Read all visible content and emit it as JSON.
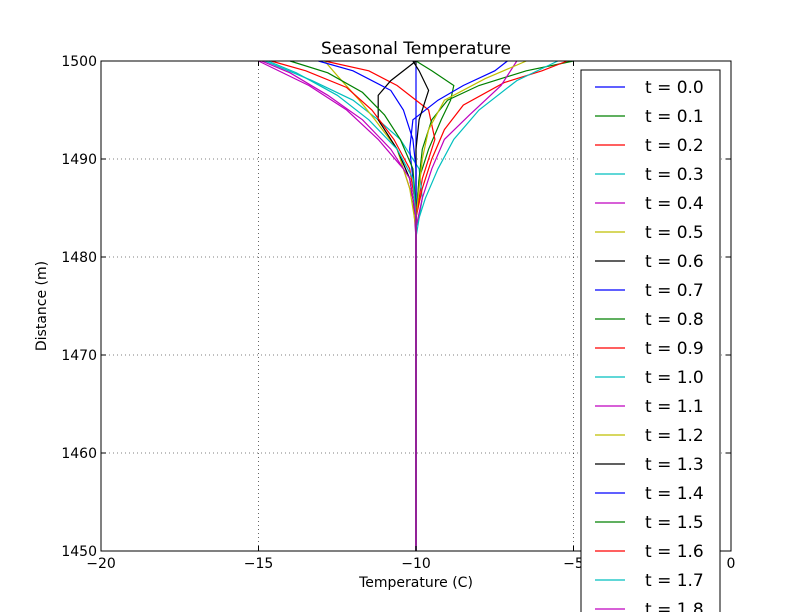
{
  "chart_data": {
    "type": "line",
    "title": "Seasonal Temperature",
    "xlabel": "Temperature (C)",
    "ylabel": "Distance (m)",
    "xlim": [
      -20,
      0
    ],
    "ylim": [
      1450,
      1500
    ],
    "xticks": [
      -20,
      -15,
      -10,
      -5,
      0
    ],
    "xtick_labels": [
      "−20",
      "−15",
      "−10",
      "−5",
      "0"
    ],
    "yticks": [
      1450,
      1460,
      1470,
      1480,
      1490,
      1500
    ],
    "ytick_labels": [
      "1450",
      "1460",
      "1470",
      "1480",
      "1490",
      "1500"
    ],
    "grid": true,
    "legend_position": "right",
    "series": [
      {
        "name": "t = 0.0",
        "color": "#0000ff",
        "points": [
          [
            -10,
            1450
          ],
          [
            -10,
            1500
          ]
        ]
      },
      {
        "name": "t = 0.1",
        "color": "#008000",
        "points": [
          [
            -10,
            1450
          ],
          [
            -10,
            1484
          ],
          [
            -9.9,
            1488
          ],
          [
            -9.6,
            1491
          ],
          [
            -9.2,
            1494
          ],
          [
            -8.9,
            1496
          ],
          [
            -8.8,
            1497.5
          ],
          [
            -9.5,
            1499
          ],
          [
            -10,
            1500
          ]
        ]
      },
      {
        "name": "t = 0.2",
        "color": "#ff0000",
        "points": [
          [
            -10,
            1450
          ],
          [
            -10,
            1484
          ],
          [
            -9.8,
            1488
          ],
          [
            -9.4,
            1492
          ],
          [
            -9.6,
            1495
          ],
          [
            -10.6,
            1497.5
          ],
          [
            -11.5,
            1499
          ],
          [
            -12.9,
            1500
          ]
        ]
      },
      {
        "name": "t = 0.3",
        "color": "#00bfbf",
        "points": [
          [
            -10,
            1450
          ],
          [
            -10,
            1482
          ],
          [
            -9.8,
            1486
          ],
          [
            -9.9,
            1489
          ],
          [
            -10.5,
            1492
          ],
          [
            -11.2,
            1494
          ],
          [
            -12,
            1496
          ],
          [
            -13.3,
            1498
          ],
          [
            -14.8,
            1500
          ]
        ]
      },
      {
        "name": "t = 0.4",
        "color": "#bf00bf",
        "points": [
          [
            -10,
            1450
          ],
          [
            -10,
            1482
          ],
          [
            -10.1,
            1486
          ],
          [
            -10.4,
            1489
          ],
          [
            -11.2,
            1492
          ],
          [
            -12.2,
            1495
          ],
          [
            -13.4,
            1497.5
          ],
          [
            -15,
            1500
          ]
        ]
      },
      {
        "name": "t = 0.5",
        "color": "#bfbf00",
        "points": [
          [
            -10,
            1450
          ],
          [
            -10,
            1483
          ],
          [
            -10.2,
            1487
          ],
          [
            -10.6,
            1491
          ],
          [
            -11.3,
            1494
          ],
          [
            -11.8,
            1496
          ],
          [
            -12.5,
            1498.5
          ],
          [
            -12.9,
            1500
          ]
        ]
      },
      {
        "name": "t = 0.6",
        "color": "#000000",
        "points": [
          [
            -10,
            1450
          ],
          [
            -10,
            1484
          ],
          [
            -10.2,
            1488
          ],
          [
            -10.6,
            1491
          ],
          [
            -11.2,
            1494
          ],
          [
            -11.2,
            1496.5
          ],
          [
            -10.8,
            1498
          ],
          [
            -10,
            1500
          ]
        ]
      },
      {
        "name": "t = 0.7",
        "color": "#0000ff",
        "points": [
          [
            -10,
            1450
          ],
          [
            -10,
            1485
          ],
          [
            -10.1,
            1488
          ],
          [
            -10.2,
            1491
          ],
          [
            -10.1,
            1494
          ],
          [
            -9.3,
            1496
          ],
          [
            -8.5,
            1497.5
          ],
          [
            -7.5,
            1499
          ],
          [
            -7.1,
            1500
          ]
        ]
      },
      {
        "name": "t = 0.8",
        "color": "#008000",
        "points": [
          [
            -10,
            1450
          ],
          [
            -10,
            1484
          ],
          [
            -9.9,
            1488
          ],
          [
            -9.8,
            1491
          ],
          [
            -9.5,
            1494
          ],
          [
            -9,
            1496
          ],
          [
            -8,
            1497.5
          ],
          [
            -6.5,
            1499
          ],
          [
            -5,
            1500
          ]
        ]
      },
      {
        "name": "t = 0.9",
        "color": "#ff0000",
        "points": [
          [
            -10,
            1450
          ],
          [
            -10,
            1484
          ],
          [
            -9.8,
            1487
          ],
          [
            -9.5,
            1490
          ],
          [
            -9.1,
            1493
          ],
          [
            -8.5,
            1495.5
          ],
          [
            -7.2,
            1497.8
          ],
          [
            -6,
            1499
          ],
          [
            -5.2,
            1500
          ]
        ]
      },
      {
        "name": "t = 1.0",
        "color": "#00bfbf",
        "points": [
          [
            -10,
            1450
          ],
          [
            -10,
            1483
          ],
          [
            -9.7,
            1486
          ],
          [
            -9.3,
            1489
          ],
          [
            -8.8,
            1492
          ],
          [
            -8,
            1495
          ],
          [
            -6.8,
            1498
          ],
          [
            -5.5,
            1500
          ]
        ]
      },
      {
        "name": "t = 1.1",
        "color": "#bf00bf",
        "points": [
          [
            -10,
            1450
          ],
          [
            -10,
            1483
          ],
          [
            -9.8,
            1486
          ],
          [
            -9.5,
            1489
          ],
          [
            -9.1,
            1492
          ],
          [
            -8.3,
            1494.5
          ],
          [
            -7.3,
            1497.5
          ],
          [
            -6.8,
            1500
          ]
        ]
      },
      {
        "name": "t = 1.2",
        "color": "#bfbf00",
        "points": [
          [
            -10,
            1450
          ],
          [
            -10,
            1484
          ],
          [
            -9.9,
            1487
          ],
          [
            -9.8,
            1490
          ],
          [
            -9.6,
            1493
          ],
          [
            -9.1,
            1496
          ],
          [
            -7.8,
            1498.2
          ],
          [
            -6.5,
            1500
          ]
        ]
      },
      {
        "name": "t = 1.3",
        "color": "#000000",
        "points": [
          [
            -10,
            1450
          ],
          [
            -10,
            1485
          ],
          [
            -10,
            1488
          ],
          [
            -10,
            1491
          ],
          [
            -9.9,
            1494
          ],
          [
            -9.6,
            1497
          ],
          [
            -9.9,
            1499
          ],
          [
            -10.1,
            1500
          ]
        ]
      },
      {
        "name": "t = 1.4",
        "color": "#0000ff",
        "points": [
          [
            -10,
            1450
          ],
          [
            -10,
            1486
          ],
          [
            -10,
            1489
          ],
          [
            -10.1,
            1492
          ],
          [
            -10.4,
            1495
          ],
          [
            -10.8,
            1497
          ],
          [
            -12,
            1499
          ],
          [
            -13.1,
            1500
          ]
        ]
      },
      {
        "name": "t = 1.5",
        "color": "#008000",
        "points": [
          [
            -10,
            1450
          ],
          [
            -10,
            1485
          ],
          [
            -10.1,
            1489
          ],
          [
            -10.5,
            1492
          ],
          [
            -11,
            1494.5
          ],
          [
            -11.7,
            1496.8
          ],
          [
            -12.8,
            1498.8
          ],
          [
            -14,
            1500
          ]
        ]
      },
      {
        "name": "t = 1.6",
        "color": "#ff0000",
        "points": [
          [
            -10,
            1450
          ],
          [
            -10,
            1485
          ],
          [
            -10.2,
            1489
          ],
          [
            -10.7,
            1492
          ],
          [
            -11.4,
            1495
          ],
          [
            -12.2,
            1497.3
          ],
          [
            -13.5,
            1499
          ],
          [
            -14.6,
            1500
          ]
        ]
      },
      {
        "name": "t = 1.7",
        "color": "#00bfbf",
        "points": [
          [
            -10,
            1450
          ],
          [
            -10,
            1484
          ],
          [
            -10.1,
            1488
          ],
          [
            -10.6,
            1491
          ],
          [
            -11.5,
            1494
          ],
          [
            -12.5,
            1496.5
          ],
          [
            -13.8,
            1498.8
          ],
          [
            -14.7,
            1500
          ]
        ]
      },
      {
        "name": "t = 1.8",
        "color": "#bf00bf",
        "points": [
          [
            -10,
            1450
          ],
          [
            -10,
            1484
          ],
          [
            -10.2,
            1488
          ],
          [
            -10.8,
            1491
          ],
          [
            -11.7,
            1494
          ],
          [
            -12.8,
            1496.5
          ],
          [
            -14,
            1498.8
          ],
          [
            -14.9,
            1500
          ]
        ]
      }
    ]
  }
}
